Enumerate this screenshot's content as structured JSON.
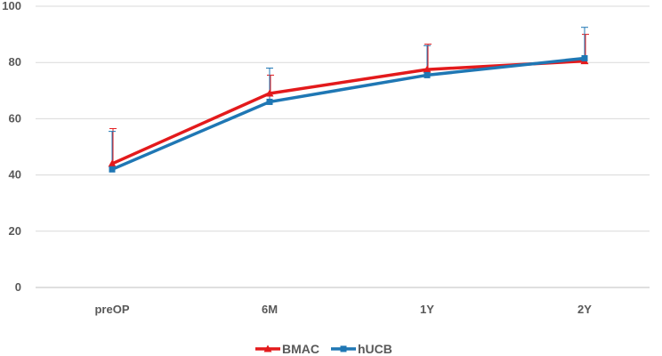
{
  "chart_data": {
    "type": "line",
    "title": "",
    "xlabel": "",
    "ylabel": "",
    "categories": [
      "preOP",
      "6M",
      "1Y",
      "2Y"
    ],
    "yticks": [
      0,
      20,
      40,
      60,
      80,
      100
    ],
    "ylim": [
      0,
      100
    ],
    "grid": true,
    "legend_position": "bottom",
    "series": [
      {
        "name": "BMAC",
        "color": "#e31a1c",
        "marker": "triangle",
        "values": [
          44,
          69,
          77.5,
          80.5
        ],
        "error_upper": [
          56.5,
          75.5,
          86.5,
          90
        ]
      },
      {
        "name": "hUCB",
        "color": "#1f77b4",
        "marker": "square",
        "values": [
          42,
          66,
          75.5,
          81.5
        ],
        "error_upper": [
          55.5,
          78,
          86,
          92.5
        ]
      }
    ]
  }
}
